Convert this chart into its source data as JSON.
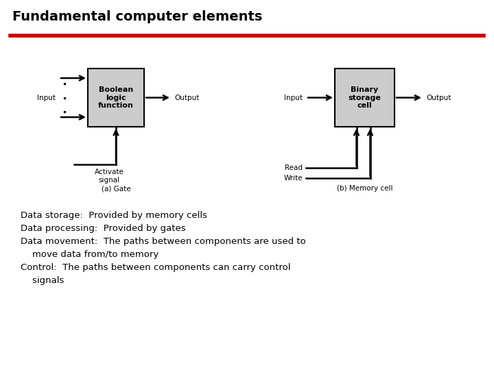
{
  "title": "Fundamental computer elements",
  "title_color": "#000000",
  "title_fontsize": 14,
  "title_bold": true,
  "line_color": "#cc0000",
  "bg_color": "#ffffff",
  "box_fill": "#cccccc",
  "box_edge": "#000000",
  "text_lines": [
    "Data storage:  Provided by memory cells",
    "Data processing:  Provided by gates",
    "Data movement:  The paths between components are used to",
    "    move data from/to memory",
    "Control:  The paths between components can carry control",
    "    signals"
  ],
  "gate_label": "Boolean\nlogic\nfunction",
  "memory_label": "Binary\nstorage\ncell",
  "gate_caption": "(a) Gate",
  "memory_caption": "(b) Memory cell",
  "gate_input_label": "Input",
  "gate_output_label": "Output",
  "memory_input_label": "Input",
  "memory_output_label": "Output",
  "memory_read_label": "Read",
  "memory_write_label": "Write",
  "activate_label": "Activate\nsignal"
}
